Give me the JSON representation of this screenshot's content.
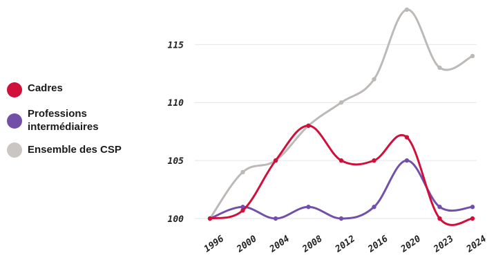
{
  "chart_data": {
    "type": "line",
    "title": "",
    "xlabel": "",
    "ylabel": "",
    "x": [
      "1996",
      "2000",
      "2004",
      "2008",
      "2012",
      "2016",
      "2020",
      "2023",
      "2024"
    ],
    "ylim": [
      100,
      118
    ],
    "yticks": [
      100,
      105,
      110,
      115
    ],
    "grid": true,
    "legend_position": "left",
    "series": [
      {
        "name": "Cadres",
        "color": "#d0103a",
        "values": [
          100,
          100.7,
          105,
          108,
          105,
          105,
          107,
          100,
          100
        ]
      },
      {
        "name": "Professions intermédiaires",
        "color": "#7350a8",
        "values": [
          100,
          101,
          100,
          101,
          100,
          101,
          105,
          101,
          101
        ]
      },
      {
        "name": "Ensemble des CSP",
        "color": "#bdb9b7",
        "values": [
          100,
          104,
          105,
          108,
          110,
          112,
          118,
          113,
          114
        ]
      }
    ]
  }
}
